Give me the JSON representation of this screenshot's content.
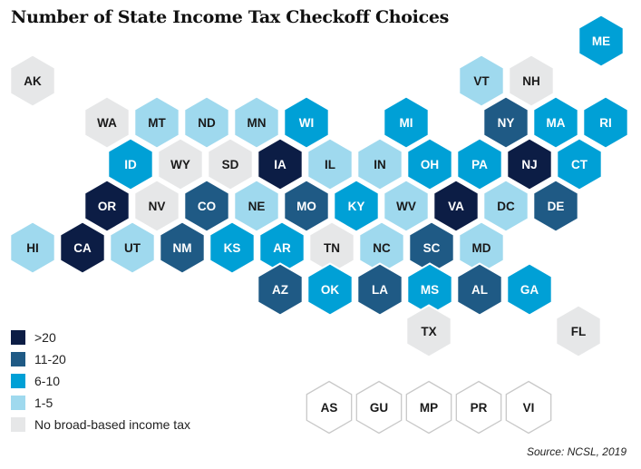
{
  "title": "Number of State Income Tax Checkoff Choices",
  "source": "Source:  NCSL, 2019",
  "legend": [
    {
      "category": "gt20",
      "label": ">20",
      "color": "#0c1d45"
    },
    {
      "category": "11-20",
      "label": "11-20",
      "color": "#1f5a85"
    },
    {
      "category": "6-10",
      "label": "6-10",
      "color": "#00a0d6"
    },
    {
      "category": "1-5",
      "label": "1-5",
      "color": "#9fd9ee"
    },
    {
      "category": "none",
      "label": "No broad-based income tax",
      "color": "#e6e7e8"
    }
  ],
  "territories_style": {
    "fill": "#ffffff",
    "stroke": "#c8c8c8"
  },
  "states": [
    {
      "code": "AK",
      "category": "none",
      "row": 1,
      "col": 0
    },
    {
      "code": "ME",
      "category": "6-10",
      "row": 0,
      "col": 12
    },
    {
      "code": "VT",
      "category": "1-5",
      "row": 1,
      "col": 10
    },
    {
      "code": "NH",
      "category": "none",
      "row": 1,
      "col": 11
    },
    {
      "code": "WA",
      "category": "none",
      "row": 2,
      "col": 1
    },
    {
      "code": "MT",
      "category": "1-5",
      "row": 2,
      "col": 2
    },
    {
      "code": "ND",
      "category": "1-5",
      "row": 2,
      "col": 3
    },
    {
      "code": "MN",
      "category": "1-5",
      "row": 2,
      "col": 4
    },
    {
      "code": "WI",
      "category": "6-10",
      "row": 2,
      "col": 5
    },
    {
      "code": "MI",
      "category": "6-10",
      "row": 2,
      "col": 7
    },
    {
      "code": "NY",
      "category": "11-20",
      "row": 2,
      "col": 9
    },
    {
      "code": "MA",
      "category": "6-10",
      "row": 2,
      "col": 10
    },
    {
      "code": "RI",
      "category": "6-10",
      "row": 2,
      "col": 11
    },
    {
      "code": "ID",
      "category": "6-10",
      "row": 3,
      "col": 1
    },
    {
      "code": "WY",
      "category": "none",
      "row": 3,
      "col": 2
    },
    {
      "code": "SD",
      "category": "none",
      "row": 3,
      "col": 3
    },
    {
      "code": "IA",
      "category": "gt20",
      "row": 3,
      "col": 4
    },
    {
      "code": "IL",
      "category": "1-5",
      "row": 3,
      "col": 5
    },
    {
      "code": "IN",
      "category": "1-5",
      "row": 3,
      "col": 6
    },
    {
      "code": "OH",
      "category": "6-10",
      "row": 3,
      "col": 7
    },
    {
      "code": "PA",
      "category": "6-10",
      "row": 3,
      "col": 8
    },
    {
      "code": "NJ",
      "category": "gt20",
      "row": 3,
      "col": 9
    },
    {
      "code": "CT",
      "category": "6-10",
      "row": 3,
      "col": 10
    },
    {
      "code": "OR",
      "category": "gt20",
      "row": 4,
      "col": 1
    },
    {
      "code": "NV",
      "category": "none",
      "row": 4,
      "col": 2
    },
    {
      "code": "CO",
      "category": "11-20",
      "row": 4,
      "col": 3
    },
    {
      "code": "NE",
      "category": "1-5",
      "row": 4,
      "col": 4
    },
    {
      "code": "MO",
      "category": "11-20",
      "row": 4,
      "col": 5
    },
    {
      "code": "KY",
      "category": "6-10",
      "row": 4,
      "col": 6
    },
    {
      "code": "WV",
      "category": "1-5",
      "row": 4,
      "col": 7
    },
    {
      "code": "VA",
      "category": "gt20",
      "row": 4,
      "col": 8
    },
    {
      "code": "DC",
      "category": "1-5",
      "row": 4,
      "col": 9
    },
    {
      "code": "DE",
      "category": "11-20",
      "row": 4,
      "col": 10
    },
    {
      "code": "HI",
      "category": "1-5",
      "row": 5,
      "col": 0
    },
    {
      "code": "CA",
      "category": "gt20",
      "row": 5,
      "col": 2
    },
    {
      "code": "UT",
      "category": "1-5",
      "row": 5,
      "col": 3
    },
    {
      "code": "NM",
      "category": "11-20",
      "row": 5,
      "col": 4
    },
    {
      "code": "KS",
      "category": "6-10",
      "row": 5,
      "col": 5
    },
    {
      "code": "AR",
      "category": "6-10",
      "row": 5,
      "col": 6
    },
    {
      "code": "TN",
      "category": "none",
      "row": 5,
      "col": 7
    },
    {
      "code": "NC",
      "category": "1-5",
      "row": 5,
      "col": 8
    },
    {
      "code": "SC",
      "category": "11-20",
      "row": 5,
      "col": 9
    },
    {
      "code": "MD",
      "category": "1-5",
      "row": 5,
      "col": 10
    },
    {
      "code": "AZ",
      "category": "11-20",
      "row": 6,
      "col": 3
    },
    {
      "code": "OK",
      "category": "6-10",
      "row": 6,
      "col": 4
    },
    {
      "code": "LA",
      "category": "11-20",
      "row": 6,
      "col": 5
    },
    {
      "code": "MS",
      "category": "6-10",
      "row": 6,
      "col": 6
    },
    {
      "code": "AL",
      "category": "11-20",
      "row": 6,
      "col": 7
    },
    {
      "code": "GA",
      "category": "6-10",
      "row": 6,
      "col": 8
    },
    {
      "code": "TX",
      "category": "none",
      "row": 7,
      "col": 4
    },
    {
      "code": "FL",
      "category": "none",
      "row": 7,
      "col": 7
    }
  ],
  "territories": [
    "AS",
    "GU",
    "MP",
    "PR",
    "VI"
  ]
}
